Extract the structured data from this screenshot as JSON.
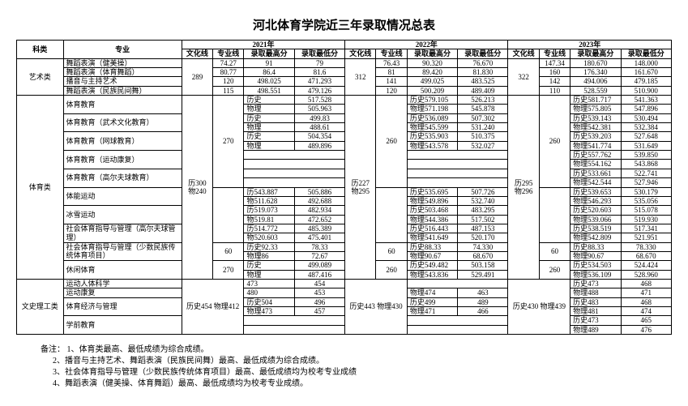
{
  "title": "河北体育学院近三年录取情况总表",
  "headers": {
    "category": "科类",
    "major": "专业",
    "y2021": "2021年",
    "y2022": "2022年",
    "y2023": "2023年",
    "culture": "文化线",
    "pro": "专业线",
    "hi": "录取最高分",
    "lo": "录取最低分"
  },
  "cats": {
    "art": "艺术类",
    "sport": "体育类",
    "lit": "文史理工类"
  },
  "majors": {
    "a1": "舞蹈表演（健美操）",
    "a2": "舞蹈表演（体育舞蹈）",
    "a3": "播音与主持艺术",
    "a4": "舞蹈表演（民族民间舞）",
    "s1": "体育教育",
    "s2": "体育教育（武术文化教育）",
    "s3": "体育教育（网球教育）",
    "s4": "体育教育（运动康复）",
    "s5": "体育教育（高尔夫球教育）",
    "s6": "体能运动",
    "s7": "冰雪运动",
    "s8": "社会体育指导与管理（高尔夫球管理）",
    "s9": "社会体育指导与管理（少数民族传统体育项目）",
    "s10": "休闲体育",
    "s11": "运动人体科学",
    "s12": "运动康复",
    "l1": "体育经济与管理",
    "l2": "学前教育"
  },
  "sub": {
    "his": "历史",
    "phy": "物理"
  },
  "blocks": {
    "y21_art_wh": "289",
    "y22_art_wh": "312",
    "y23_art_wh": "322",
    "y21_sport": "历300\n物240",
    "y22_sport": "历227\n物295",
    "y23_sport": "历295\n物296",
    "y21_sport_zy_270": "270",
    "y22_sport_zy_260": "260",
    "y23_sport_zy_260": "260",
    "y21_sport_zy_60": "60",
    "y22_sport_zy_60": "60",
    "y23_sport_zy_60": "60",
    "y21_sport_zy_270b": "270",
    "y22_sport_zy_260b": "260",
    "y23_sport_zy_260b": "260",
    "y21_lit": "历史454\n物理412",
    "y22_lit": "历史443\n物理430",
    "y23_lit": "历史430\n物理439"
  },
  "rows": {
    "a1": {
      "y21": [
        "74.27",
        "91",
        "79",
        ""
      ],
      "y22": [
        "76.43",
        "90.320",
        "76.670",
        ""
      ],
      "y23": [
        "147.34",
        "180.670",
        "148.000",
        ""
      ]
    },
    "a2": {
      "y21": [
        "80.77",
        "86.4",
        "81.6",
        ""
      ],
      "y22": [
        "81",
        "89.420",
        "81.830",
        ""
      ],
      "y23": [
        "160",
        "176.340",
        "161.670",
        ""
      ]
    },
    "a3": {
      "y21": [
        "120",
        "498.025",
        "471.293",
        ""
      ],
      "y22": [
        "141",
        "499.025",
        "483.525",
        ""
      ],
      "y23": [
        "142",
        "494.006",
        "479.185",
        ""
      ]
    },
    "a4": {
      "y21": [
        "115",
        "498.551",
        "479.126",
        ""
      ],
      "y22": [
        "120",
        "500.209",
        "489.409",
        ""
      ],
      "y23": [
        "110",
        "528.559",
        "510.900",
        ""
      ]
    },
    "s1h": {
      "y21": [
        "517.528",
        ""
      ],
      "y22": [
        "历史579.105",
        "526.213"
      ],
      "y23": [
        "历史581.717",
        "541.363"
      ]
    },
    "s1p": {
      "y21": [
        "505.963",
        ""
      ],
      "y22": [
        "物理571.198",
        "545.878"
      ],
      "y23": [
        "物理575.805",
        "547.896"
      ]
    },
    "s2h": {
      "y21": [
        "499.83",
        ""
      ],
      "y22": [
        "历史536.089",
        "507.302"
      ],
      "y23": [
        "历史539.143",
        "530.494"
      ]
    },
    "s2p": {
      "y21": [
        "488.61",
        ""
      ],
      "y22": [
        "物理545.599",
        "531.240"
      ],
      "y23": [
        "物理542.381",
        "532.384"
      ]
    },
    "s3h": {
      "y21": [
        "504.354",
        ""
      ],
      "y22": [
        "历史535.903",
        "510.375"
      ],
      "y23": [
        "历史539.203",
        "527.648"
      ]
    },
    "s3p": {
      "y21": [
        "489.896",
        ""
      ],
      "y22": [
        "物理543.578",
        "532.027"
      ],
      "y23": [
        "物理541.774",
        "531.649"
      ]
    },
    "s4h": {
      "y21": [
        "",
        ""
      ],
      "y22": [
        "",
        ""
      ],
      "y23": [
        "历史557.762",
        "539.850"
      ]
    },
    "s4p": {
      "y21": [
        "",
        ""
      ],
      "y22": [
        "",
        ""
      ],
      "y23": [
        "物理554.162",
        "543.868"
      ]
    },
    "s5h": {
      "y21": [
        "",
        ""
      ],
      "y22": [
        "",
        ""
      ],
      "y23": [
        "历史533.661",
        "522.741"
      ]
    },
    "s5p": {
      "y21": [
        "",
        ""
      ],
      "y22": [
        "",
        ""
      ],
      "y23": [
        "物理542.544",
        "527.946"
      ]
    },
    "s6h": {
      "y21": [
        "历543.887",
        "505.886"
      ],
      "y22": [
        "历史535.695",
        "507.726"
      ],
      "y23": [
        "历史539.653",
        "530.179"
      ]
    },
    "s6p": {
      "y21": [
        "物511.628",
        "492.688"
      ],
      "y22": [
        "物理549.896",
        "532.740"
      ],
      "y23": [
        "物理546.293",
        "535.056"
      ]
    },
    "s7h": {
      "y21": [
        "历519.073",
        "482.934"
      ],
      "y22": [
        "历史503.468",
        "483.295"
      ],
      "y23": [
        "历史520.603",
        "515.078"
      ]
    },
    "s7p": {
      "y21": [
        "物519.81",
        "472.652"
      ],
      "y22": [
        "物理544.386",
        "517.502"
      ],
      "y23": [
        "物理539.066",
        "519.930"
      ]
    },
    "s8h": {
      "y21": [
        "历514.772",
        "485.389"
      ],
      "y22": [
        "历史516.443",
        "487.153"
      ],
      "y23": [
        "历史538.519",
        "517.341"
      ]
    },
    "s8p": {
      "y21": [
        "物520.603",
        "475.401"
      ],
      "y22": [
        "物理541.649",
        "520.170"
      ],
      "y23": [
        "物理542.809",
        "521.951"
      ]
    },
    "s9h": {
      "y21": [
        "历史92.33",
        "78.33"
      ],
      "y22": [
        "历史88.33",
        "74.330"
      ],
      "y23": [
        "历史88.33",
        "78.330"
      ]
    },
    "s9p": {
      "y21": [
        "物理86",
        "72.67"
      ],
      "y22": [
        "物理90.67",
        "68.670"
      ],
      "y23": [
        "物理90.67",
        "68.670"
      ]
    },
    "s10h": {
      "y21": [
        "499.089",
        ""
      ],
      "y22": [
        "历史549.482",
        "503.158"
      ],
      "y23": [
        "历史534.503",
        "524.424"
      ]
    },
    "s10p": {
      "y21": [
        "487.416",
        ""
      ],
      "y22": [
        "物理543.836",
        "529.491"
      ],
      "y23": [
        "物理536.109",
        "528.960"
      ]
    },
    "s11h": {
      "y21": [
        "473",
        "454"
      ],
      "y22": [
        "",
        ""
      ],
      "y23": [
        "历史473",
        "468"
      ]
    },
    "s12p": {
      "y21": [
        "480",
        "453"
      ],
      "y22": [
        "物理474",
        "463"
      ],
      "y23": [
        "物理488",
        "471"
      ]
    },
    "l1h": {
      "y21": [
        "历史504",
        "496"
      ],
      "y22": [
        "历史499",
        "489"
      ],
      "y23": [
        "历史483",
        "468"
      ]
    },
    "l1p": {
      "y21": [
        "物理473",
        "457"
      ],
      "y22": [
        "物理471",
        "466"
      ],
      "y23": [
        "物理481",
        "474"
      ]
    },
    "l2h": {
      "y21": [
        "",
        ""
      ],
      "y22": [
        "",
        ""
      ],
      "y23": [
        "历史473",
        "465"
      ]
    },
    "l2p": {
      "y21": [
        "",
        ""
      ],
      "y22": [
        "",
        ""
      ],
      "y23": [
        "物理489",
        "476"
      ]
    }
  },
  "notes": {
    "label": "备注：",
    "n1": "1、体育类最高、最低成绩为综合成绩。",
    "n2": "2、播音与主持艺术、舞蹈表演（民族民间舞）最高、最低成绩为综合成绩。",
    "n3": "3、社会体育指导与管理（少数民族传统体育项目）最高、最低成绩均为校考专业成绩",
    "n4": "4、舞蹈表演（健美操、体育舞蹈）最高、最低成绩均为校考专业成绩。"
  }
}
